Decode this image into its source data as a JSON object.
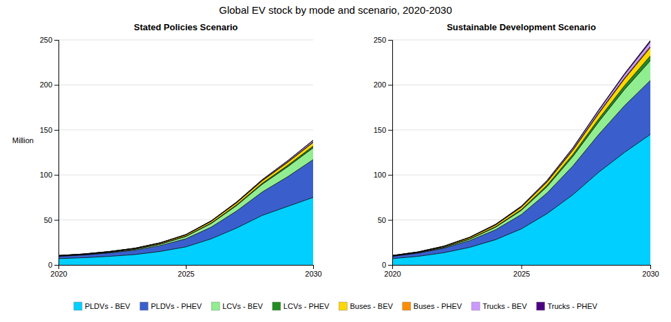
{
  "title": "Global EV stock by mode and scenario, 2020-2030",
  "chart_data": [
    {
      "type": "area",
      "stacked": true,
      "grid": true,
      "legend": "bottom",
      "title": "Stated Policies Scenario",
      "ylabel": "Million",
      "x": [
        2020,
        2021,
        2022,
        2023,
        2024,
        2025,
        2026,
        2027,
        2028,
        2029,
        2030
      ],
      "xlim": [
        2020,
        2030
      ],
      "xticks": [
        2020,
        2025,
        2030
      ],
      "ylim": [
        0,
        250
      ],
      "yticks": [
        0,
        50,
        100,
        150,
        200,
        250
      ],
      "series": [
        {
          "name": "PLDVs - BEV",
          "color": "#00cfff",
          "values": [
            7.0,
            8.0,
            9.5,
            11.5,
            15.0,
            20.0,
            29.0,
            41.0,
            55.0,
            65.0,
            75.0
          ]
        },
        {
          "name": "PLDVs - PHEV",
          "color": "#3a5fcd",
          "values": [
            2.5,
            3.0,
            3.8,
            4.8,
            6.5,
            9.0,
            13.0,
            19.0,
            26.0,
            33.0,
            42.0
          ]
        },
        {
          "name": "LCVs - BEV",
          "color": "#90ee90",
          "values": [
            0.3,
            0.4,
            0.6,
            1.0,
            1.5,
            2.5,
            4.0,
            6.0,
            8.5,
            11.0,
            13.0
          ]
        },
        {
          "name": "LCVs - PHEV",
          "color": "#228b22",
          "values": [
            0.05,
            0.07,
            0.1,
            0.15,
            0.25,
            0.4,
            0.6,
            0.9,
            1.2,
            1.6,
            2.0
          ]
        },
        {
          "name": "Buses - BEV",
          "color": "#ffd700",
          "values": [
            0.5,
            0.6,
            0.75,
            0.9,
            1.1,
            1.4,
            1.8,
            2.2,
            2.7,
            3.3,
            4.0
          ]
        },
        {
          "name": "Buses - PHEV",
          "color": "#ff8c00",
          "values": [
            0.05,
            0.06,
            0.07,
            0.09,
            0.11,
            0.14,
            0.18,
            0.23,
            0.3,
            0.38,
            0.48
          ]
        },
        {
          "name": "Trucks - BEV",
          "color": "#cc99ff",
          "values": [
            0.03,
            0.04,
            0.06,
            0.1,
            0.15,
            0.25,
            0.4,
            0.6,
            0.9,
            1.3,
            1.8
          ]
        },
        {
          "name": "Trucks - PHEV",
          "color": "#4b0082",
          "values": [
            0.01,
            0.01,
            0.02,
            0.03,
            0.04,
            0.06,
            0.09,
            0.13,
            0.18,
            0.25,
            0.35
          ]
        }
      ]
    },
    {
      "type": "area",
      "stacked": true,
      "grid": true,
      "title": "Sustainable Development Scenario",
      "x": [
        2020,
        2021,
        2022,
        2023,
        2024,
        2025,
        2026,
        2027,
        2028,
        2029,
        2030
      ],
      "xlim": [
        2020,
        2030
      ],
      "xticks": [
        2020,
        2025,
        2030
      ],
      "ylim": [
        0,
        250
      ],
      "yticks": [
        0,
        50,
        100,
        150,
        200,
        250
      ],
      "series": [
        {
          "name": "PLDVs - BEV",
          "color": "#00cfff",
          "values": [
            7.0,
            9.5,
            13.5,
            19.5,
            28.0,
            40.0,
            57.0,
            78.0,
            103.0,
            125.0,
            145.0
          ]
        },
        {
          "name": "PLDVs - PHEV",
          "color": "#3a5fcd",
          "values": [
            2.5,
            3.5,
            5.0,
            7.5,
            11.0,
            16.0,
            23.0,
            32.0,
            42.0,
            52.0,
            60.0
          ]
        },
        {
          "name": "LCVs - BEV",
          "color": "#90ee90",
          "values": [
            0.3,
            0.5,
            0.9,
            1.6,
            2.8,
            4.5,
            7.0,
            10.5,
            14.0,
            18.0,
            22.0
          ]
        },
        {
          "name": "LCVs - PHEV",
          "color": "#228b22",
          "values": [
            0.05,
            0.1,
            0.2,
            0.35,
            0.6,
            1.0,
            1.6,
            2.3,
            3.2,
            4.2,
            5.3
          ]
        },
        {
          "name": "Buses - BEV",
          "color": "#ffd700",
          "values": [
            0.5,
            0.7,
            1.0,
            1.4,
            1.9,
            2.6,
            3.5,
            4.6,
            6.0,
            7.5,
            9.2
          ]
        },
        {
          "name": "Buses - PHEV",
          "color": "#ff8c00",
          "values": [
            0.05,
            0.07,
            0.1,
            0.14,
            0.2,
            0.28,
            0.4,
            0.55,
            0.72,
            0.92,
            1.15
          ]
        },
        {
          "name": "Trucks - BEV",
          "color": "#cc99ff",
          "values": [
            0.03,
            0.07,
            0.14,
            0.26,
            0.46,
            0.75,
            1.2,
            1.8,
            2.7,
            3.9,
            5.3
          ]
        },
        {
          "name": "Trucks - PHEV",
          "color": "#4b0082",
          "values": [
            0.01,
            0.02,
            0.05,
            0.09,
            0.15,
            0.25,
            0.38,
            0.56,
            0.8,
            1.1,
            1.5
          ]
        }
      ]
    }
  ]
}
